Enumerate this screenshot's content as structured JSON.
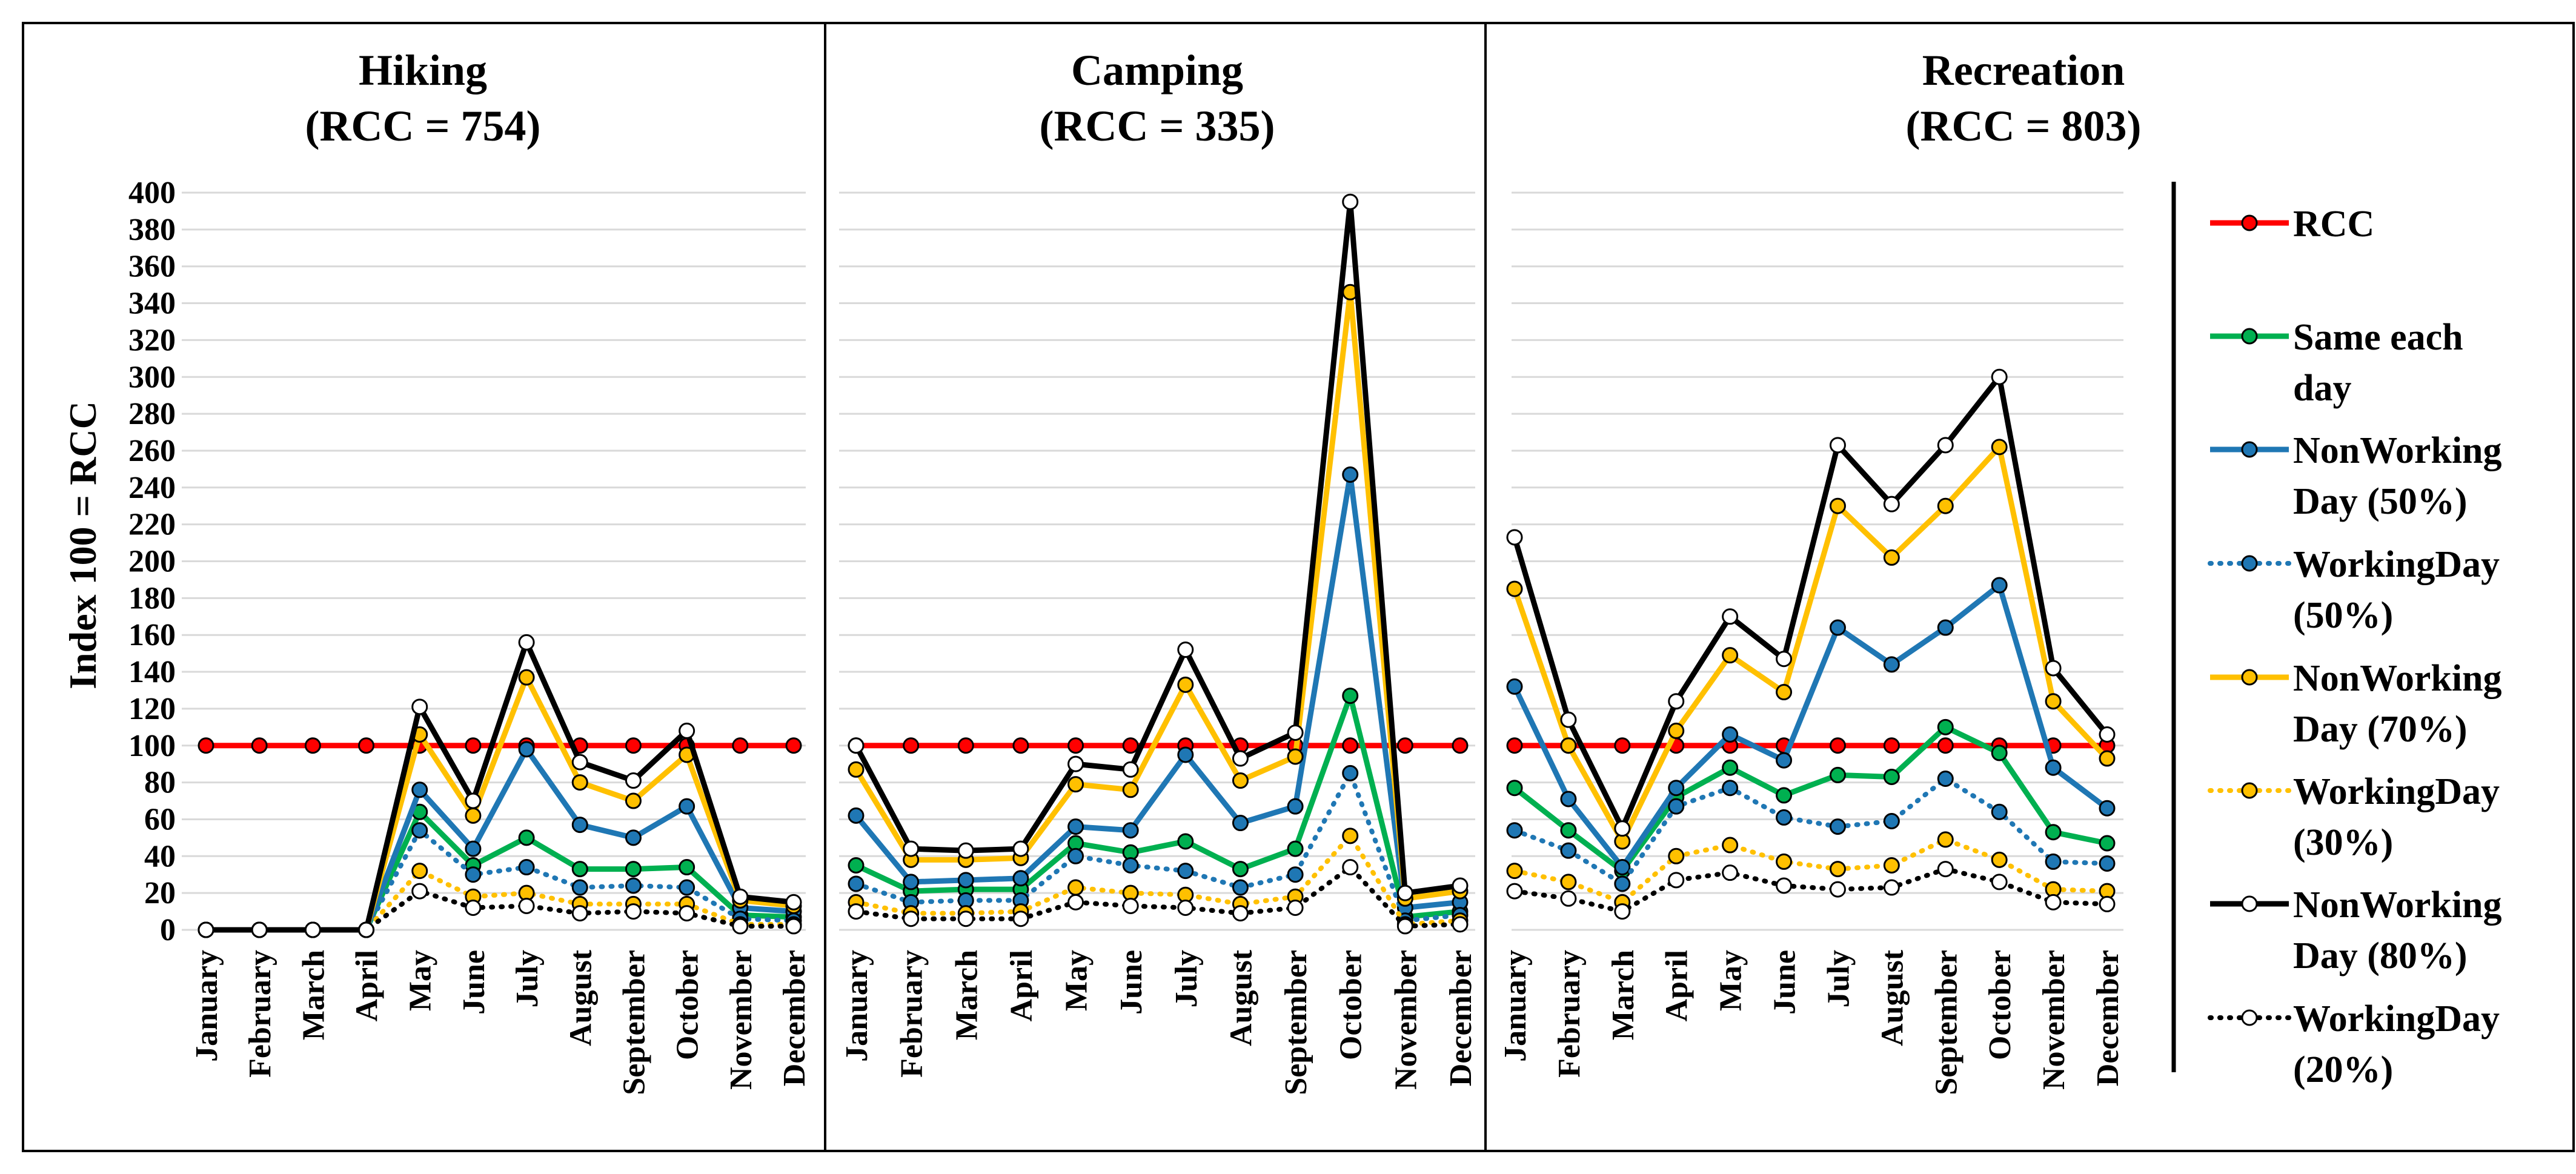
{
  "chart_data": {
    "type": "line",
    "ylabel": "Index 100 = RCC",
    "ylim": [
      0,
      400
    ],
    "yticks": [
      "0",
      "20",
      "40",
      "60",
      "80",
      "100",
      "120",
      "140",
      "160",
      "180",
      "200",
      "220",
      "240",
      "260",
      "280",
      "300",
      "320",
      "340",
      "360",
      "380",
      "400"
    ],
    "categories": [
      "January",
      "February",
      "March",
      "April",
      "May",
      "June",
      "July",
      "August",
      "September",
      "October",
      "November",
      "December"
    ],
    "legend": [
      {
        "key": "rcc",
        "lines": [
          "RCC"
        ],
        "color": "#ff0000",
        "dash": "solid",
        "marker_fill": "#ff0000"
      },
      {
        "key": "same",
        "lines": [
          "Same each",
          "day"
        ],
        "color": "#00b050",
        "dash": "solid",
        "marker_fill": "#00b050"
      },
      {
        "key": "nw50",
        "lines": [
          "NonWorking",
          "Day (50%)"
        ],
        "color": "#1f77b4",
        "dash": "solid",
        "marker_fill": "#1f77b4"
      },
      {
        "key": "w50",
        "lines": [
          "WorkingDay",
          "(50%)"
        ],
        "color": "#1f77b4",
        "dash": "dotted",
        "marker_fill": "#1f77b4"
      },
      {
        "key": "nw70",
        "lines": [
          "NonWorking",
          "Day (70%)"
        ],
        "color": "#ffc000",
        "dash": "solid",
        "marker_fill": "#ffc000"
      },
      {
        "key": "w30",
        "lines": [
          "WorkingDay",
          "(30%)"
        ],
        "color": "#ffc000",
        "dash": "dotted",
        "marker_fill": "#ffc000"
      },
      {
        "key": "nw80",
        "lines": [
          "NonWorking",
          "Day (80%)"
        ],
        "color": "#000000",
        "dash": "solid",
        "marker_fill": "#ffffff"
      },
      {
        "key": "w20",
        "lines": [
          "WorkingDay",
          "(20%)"
        ],
        "color": "#000000",
        "dash": "dotted",
        "marker_fill": "#ffffff"
      }
    ],
    "panels": [
      {
        "title_line1": "Hiking",
        "title_line2": "(RCC = 754)",
        "series": {
          "rcc": [
            100,
            100,
            100,
            100,
            100,
            100,
            100,
            100,
            100,
            100,
            100,
            100
          ],
          "same": [
            0,
            0,
            0,
            0,
            64,
            35,
            50,
            33,
            33,
            34,
            8,
            7
          ],
          "nw50": [
            0,
            0,
            0,
            0,
            76,
            44,
            98,
            57,
            50,
            67,
            12,
            10
          ],
          "w50": [
            0,
            0,
            0,
            0,
            54,
            30,
            34,
            23,
            24,
            23,
            6,
            5
          ],
          "nw70": [
            0,
            0,
            0,
            0,
            106,
            62,
            137,
            80,
            70,
            95,
            16,
            13
          ],
          "w30": [
            0,
            0,
            0,
            0,
            32,
            18,
            20,
            14,
            14,
            14,
            3,
            3
          ],
          "nw80": [
            0,
            0,
            0,
            0,
            121,
            70,
            156,
            91,
            81,
            108,
            18,
            15
          ],
          "w20": [
            0,
            0,
            0,
            0,
            21,
            12,
            13,
            9,
            10,
            9,
            2,
            2
          ]
        }
      },
      {
        "title_line1": "Camping",
        "title_line2": "(RCC = 335)",
        "series": {
          "rcc": [
            100,
            100,
            100,
            100,
            100,
            100,
            100,
            100,
            100,
            100,
            100,
            100
          ],
          "same": [
            35,
            21,
            22,
            22,
            47,
            42,
            48,
            33,
            44,
            127,
            7,
            10
          ],
          "nw50": [
            62,
            26,
            27,
            28,
            56,
            54,
            95,
            58,
            67,
            247,
            12,
            15
          ],
          "w50": [
            25,
            15,
            16,
            16,
            40,
            35,
            32,
            23,
            30,
            85,
            5,
            8
          ],
          "nw70": [
            87,
            38,
            38,
            39,
            79,
            76,
            133,
            81,
            94,
            346,
            17,
            21
          ],
          "w30": [
            15,
            9,
            9,
            10,
            23,
            20,
            19,
            14,
            18,
            51,
            3,
            5
          ],
          "nw80": [
            100,
            44,
            43,
            44,
            90,
            87,
            152,
            93,
            107,
            395,
            20,
            24
          ],
          "w20": [
            10,
            6,
            6,
            6,
            15,
            13,
            12,
            9,
            12,
            34,
            2,
            3
          ]
        }
      },
      {
        "title_line1": "Recreation",
        "title_line2": "(RCC = 803)",
        "series": {
          "rcc": [
            100,
            100,
            100,
            100,
            100,
            100,
            100,
            100,
            100,
            100,
            100,
            100
          ],
          "same": [
            77,
            54,
            32,
            72,
            88,
            73,
            84,
            83,
            110,
            96,
            53,
            47
          ],
          "nw50": [
            132,
            71,
            34,
            77,
            106,
            92,
            164,
            144,
            164,
            187,
            88,
            66
          ],
          "w50": [
            54,
            43,
            25,
            67,
            77,
            61,
            56,
            59,
            82,
            64,
            37,
            36
          ],
          "nw70": [
            185,
            100,
            48,
            108,
            149,
            129,
            230,
            202,
            230,
            262,
            124,
            93
          ],
          "w30": [
            32,
            26,
            15,
            40,
            46,
            37,
            33,
            35,
            49,
            38,
            22,
            21
          ],
          "nw80": [
            213,
            114,
            55,
            124,
            170,
            147,
            263,
            231,
            263,
            300,
            142,
            106
          ],
          "w20": [
            21,
            17,
            10,
            27,
            31,
            24,
            22,
            23,
            33,
            26,
            15,
            14
          ]
        }
      }
    ]
  }
}
